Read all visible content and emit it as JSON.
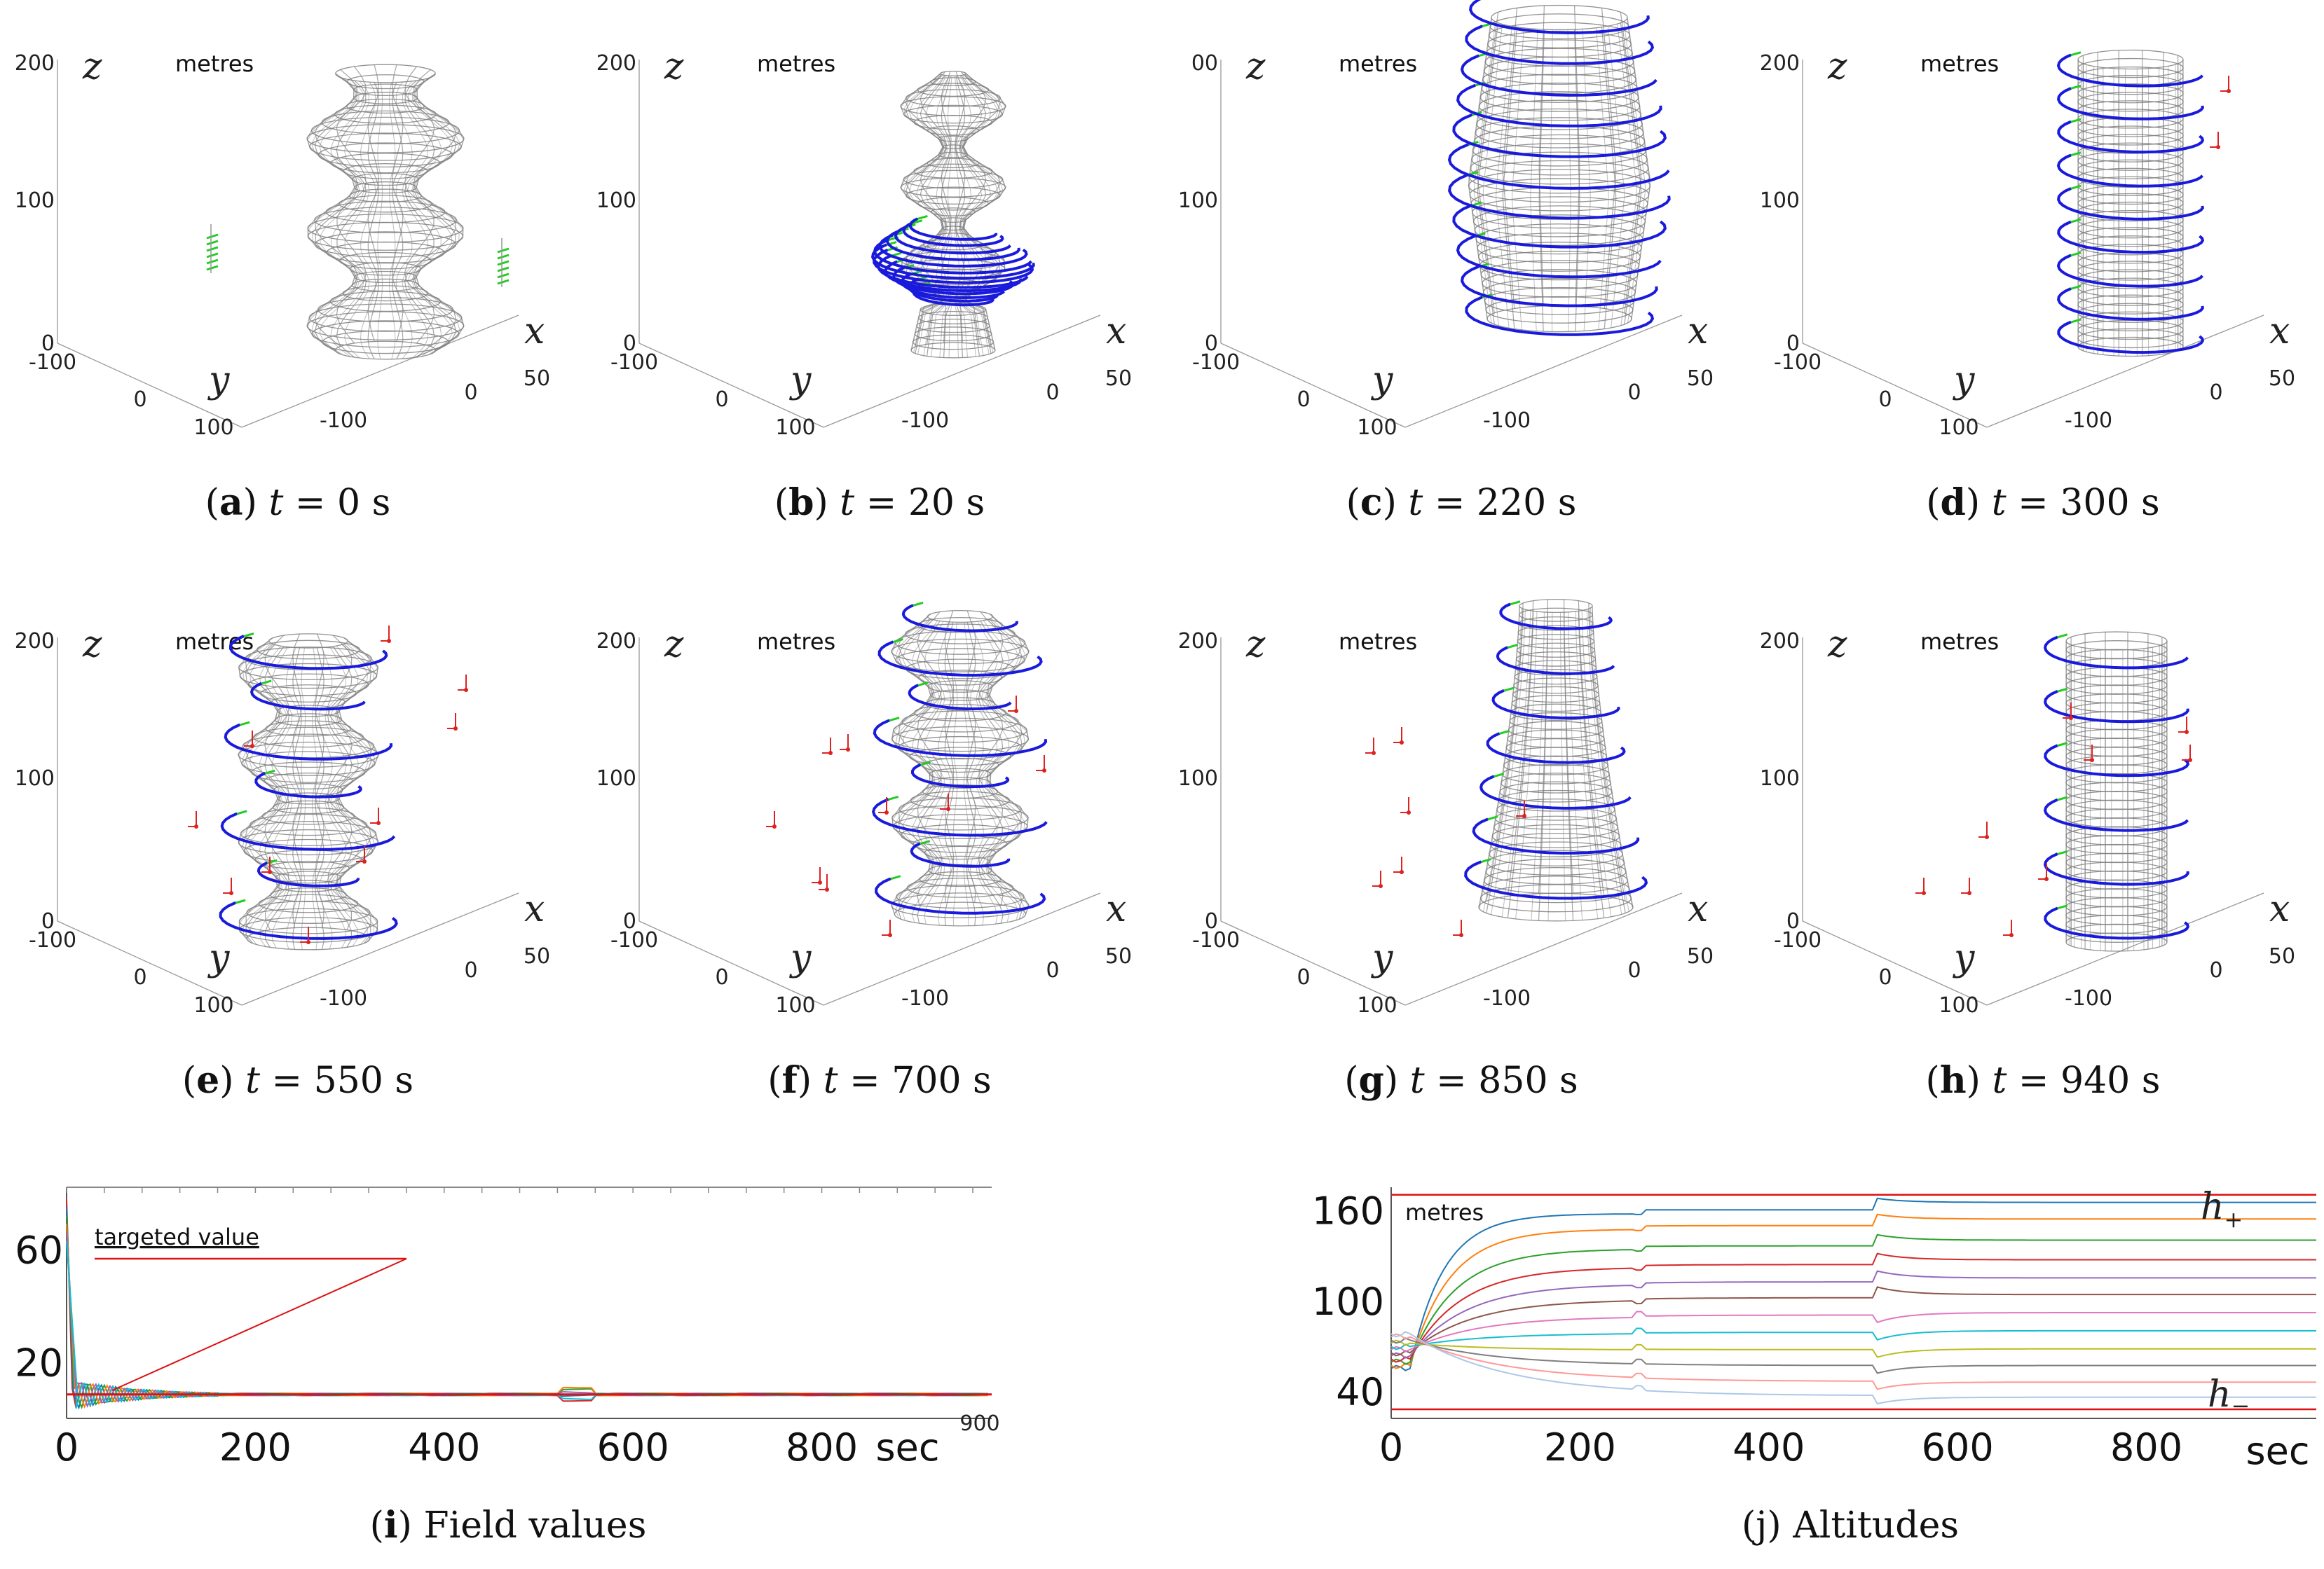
{
  "chart_data": {
    "type": "figure",
    "colors": {
      "surface": "#808080",
      "trajectory": "#1a1adc",
      "agent_green": "#22cc22",
      "agent_red": "#dd2222",
      "targeted": "#dd1111"
    },
    "panels3d": {
      "unit_label": "metres",
      "axis_names": {
        "x": "x",
        "y": "y",
        "z": "z"
      },
      "z_ticks": [
        "200",
        "100",
        "0"
      ],
      "y_ticks": [
        "-100",
        "0",
        "100"
      ],
      "x_ticks": [
        "-100",
        "0",
        "50"
      ],
      "items": [
        {
          "letter": "a",
          "time": "t = 0 s",
          "z_top_tick": "200"
        },
        {
          "letter": "b",
          "time": "t = 20 s",
          "z_top_tick": "200"
        },
        {
          "letter": "c",
          "time": "t = 220 s",
          "z_top_tick": "00"
        },
        {
          "letter": "d",
          "time": "t = 300 s",
          "z_top_tick": "200"
        },
        {
          "letter": "e",
          "time": "t = 550 s",
          "z_top_tick": "200"
        },
        {
          "letter": "f",
          "time": "t = 700 s",
          "z_top_tick": "200"
        },
        {
          "letter": "g",
          "time": "t = 850 s",
          "z_top_tick": "200"
        },
        {
          "letter": "h",
          "time": "t = 940 s",
          "z_top_tick": "200"
        }
      ]
    },
    "field_values": {
      "type": "line",
      "letter": "i",
      "caption": "Field values",
      "annotation": "targeted value",
      "xlabel": "sec",
      "xlim": [
        0,
        980
      ],
      "ylim": [
        0,
        82
      ],
      "x_ticks": [
        "0",
        "200",
        "400",
        "600",
        "800"
      ],
      "y_ticks": [
        "60",
        "20"
      ],
      "small_label": "900",
      "target_value": 8.5,
      "initial_value": 78
    },
    "altitudes": {
      "type": "line",
      "letter": "j",
      "caption": "Altitudes",
      "unit_label": "metres",
      "xlabel": "sec",
      "xlim": [
        0,
        980
      ],
      "ylim": [
        22,
        175
      ],
      "x_ticks": [
        "0",
        "200",
        "400",
        "600",
        "800"
      ],
      "y_ticks": [
        "160",
        "100",
        "40"
      ],
      "h_plus_label": "h",
      "h_plus_sub": "+",
      "h_minus_label": "h",
      "h_minus_sub": "−",
      "h_plus": 170,
      "h_minus": 28,
      "start_range": [
        55,
        78
      ],
      "final_levels": [
        165,
        154,
        140,
        127,
        115,
        104,
        92,
        80,
        68,
        57,
        46,
        36
      ],
      "series_colors": [
        "#1f77b4",
        "#ff7f0e",
        "#2ca02c",
        "#d62728",
        "#9467bd",
        "#8c564b",
        "#e377c2",
        "#17becf",
        "#bcbd22",
        "#7f7f7f",
        "#ff9896",
        "#aec7e8"
      ]
    }
  }
}
